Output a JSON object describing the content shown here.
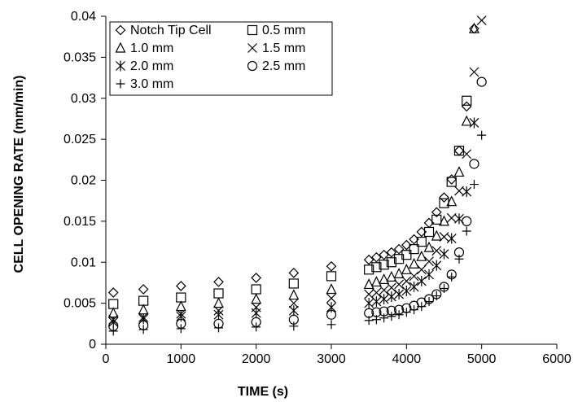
{
  "chart_data": {
    "type": "scatter",
    "title": "",
    "xlabel": "TIME (s)",
    "ylabel": "CELL OPENING RATE (mm/min)",
    "xlim": [
      0,
      6000
    ],
    "ylim": [
      0,
      0.04
    ],
    "xticks": [
      0,
      1000,
      2000,
      3000,
      4000,
      5000,
      6000
    ],
    "yticks": [
      0,
      0.005,
      0.01,
      0.015,
      0.02,
      0.025,
      0.03,
      0.035,
      0.04
    ],
    "xtick_labels": [
      "0",
      "1000",
      "2000",
      "3000",
      "4000",
      "5000",
      "6000"
    ],
    "ytick_labels": [
      "0",
      "0.005",
      "0.01",
      "0.015",
      "0.02",
      "0.025",
      "0.03",
      "0.035",
      "0.04"
    ],
    "grid": false,
    "legend_position": "top-left",
    "series": [
      {
        "name": "Notch Tip Cell",
        "marker": "diamond",
        "x": [
          100,
          500,
          1000,
          1500,
          2000,
          2500,
          3000,
          3500,
          3600,
          3700,
          3800,
          3900,
          4000,
          4100,
          4200,
          4300,
          4400,
          4500,
          4600,
          4700,
          4800,
          4900
        ],
        "y": [
          0.0063,
          0.0067,
          0.0071,
          0.0076,
          0.0081,
          0.0087,
          0.0095,
          0.0103,
          0.0106,
          0.0109,
          0.0112,
          0.0116,
          0.0121,
          0.0128,
          0.0137,
          0.0148,
          0.0161,
          0.0179,
          0.0201,
          0.0236,
          0.029,
          0.0385
        ]
      },
      {
        "name": "0.5 mm",
        "marker": "square",
        "x": [
          100,
          500,
          1000,
          1500,
          2000,
          2500,
          3000,
          3500,
          3600,
          3700,
          3800,
          3900,
          4000,
          4100,
          4200,
          4300,
          4400,
          4500,
          4600,
          4700,
          4800
        ],
        "y": [
          0.0049,
          0.0053,
          0.0057,
          0.0062,
          0.0067,
          0.0074,
          0.0083,
          0.0091,
          0.0094,
          0.0097,
          0.01,
          0.0104,
          0.0109,
          0.0116,
          0.0125,
          0.0137,
          0.0152,
          0.0172,
          0.0198,
          0.0236,
          0.0297
        ]
      },
      {
        "name": "1.0 mm",
        "marker": "triangle",
        "x": [
          100,
          500,
          1000,
          1500,
          2000,
          2500,
          3000,
          3500,
          3600,
          3700,
          3800,
          3900,
          4000,
          4100,
          4200,
          4300,
          4400,
          4500,
          4600,
          4700,
          4800,
          4900
        ],
        "y": [
          0.0038,
          0.0042,
          0.0046,
          0.005,
          0.0055,
          0.006,
          0.0067,
          0.0073,
          0.0076,
          0.0079,
          0.0082,
          0.0086,
          0.0091,
          0.0098,
          0.0107,
          0.0118,
          0.0132,
          0.015,
          0.0174,
          0.021,
          0.0272,
          0.0385
        ]
      },
      {
        "name": "1.5 mm",
        "marker": "x",
        "x": [
          100,
          500,
          1000,
          1500,
          2000,
          2500,
          3000,
          3500,
          3600,
          3700,
          3800,
          3900,
          4000,
          4100,
          4200,
          4300,
          4400,
          4500,
          4600,
          4700,
          4800,
          4900,
          5000
        ],
        "y": [
          0.003,
          0.0033,
          0.0037,
          0.0041,
          0.0045,
          0.005,
          0.0056,
          0.0061,
          0.0063,
          0.0066,
          0.0069,
          0.0073,
          0.0077,
          0.0083,
          0.0091,
          0.0101,
          0.0114,
          0.0131,
          0.0154,
          0.0187,
          0.0232,
          0.0332,
          0.0395
        ]
      },
      {
        "name": "2.0 mm",
        "marker": "asterisk",
        "x": [
          100,
          500,
          1000,
          1500,
          2000,
          2500,
          3000,
          3500,
          3600,
          3700,
          3800,
          3900,
          4000,
          4100,
          4200,
          4300,
          4400,
          4500,
          4600,
          4700,
          4800,
          4900
        ],
        "y": [
          0.0027,
          0.0031,
          0.0034,
          0.0036,
          0.0038,
          0.0041,
          0.0045,
          0.005,
          0.0052,
          0.0055,
          0.0058,
          0.0061,
          0.0065,
          0.007,
          0.0077,
          0.0085,
          0.0096,
          0.011,
          0.0129,
          0.0153,
          0.0186,
          0.027
        ]
      },
      {
        "name": "2.5 mm",
        "marker": "circle",
        "x": [
          100,
          500,
          1000,
          1500,
          2000,
          2500,
          3000,
          3500,
          3600,
          3700,
          3800,
          3900,
          4000,
          4100,
          4200,
          4300,
          4400,
          4500,
          4600,
          4700,
          4800,
          4900,
          5000
        ],
        "y": [
          0.0022,
          0.0023,
          0.0025,
          0.0025,
          0.0027,
          0.003,
          0.0036,
          0.0038,
          0.0039,
          0.004,
          0.0041,
          0.0042,
          0.0044,
          0.0047,
          0.0051,
          0.0055,
          0.0061,
          0.007,
          0.0085,
          0.0112,
          0.015,
          0.022,
          0.032
        ]
      },
      {
        "name": "3.0 mm",
        "marker": "plus",
        "x": [
          100,
          500,
          1000,
          1500,
          2000,
          2500,
          3000,
          3500,
          3600,
          3700,
          3800,
          3900,
          4000,
          4100,
          4200,
          4300,
          4400,
          4500,
          4600,
          4700,
          4800,
          4900,
          5000
        ],
        "y": [
          0.0016,
          0.0018,
          0.0019,
          0.002,
          0.0021,
          0.0022,
          0.0024,
          0.0029,
          0.003,
          0.0032,
          0.0034,
          0.0036,
          0.0039,
          0.0042,
          0.0046,
          0.0052,
          0.0059,
          0.0068,
          0.0082,
          0.0104,
          0.0138,
          0.0195,
          0.0255
        ]
      }
    ]
  }
}
